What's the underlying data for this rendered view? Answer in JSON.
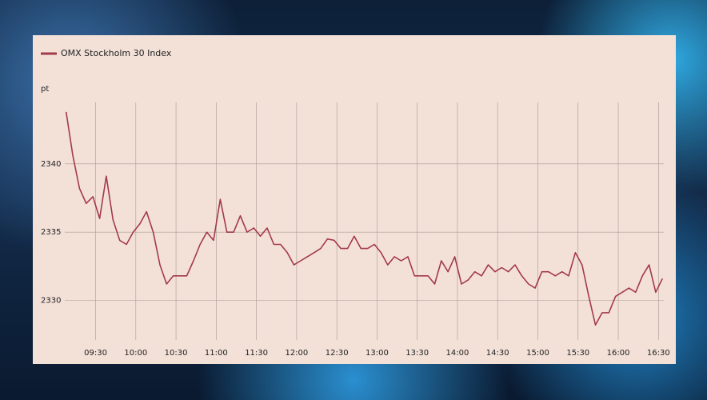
{
  "chart_data": {
    "type": "line",
    "legend": "top-left",
    "grid": true,
    "y_label": "pt",
    "x": [
      "09:08",
      "09:13",
      "09:18",
      "09:23",
      "09:28",
      "09:33",
      "09:38",
      "09:43",
      "09:48",
      "09:53",
      "09:58",
      "10:03",
      "10:08",
      "10:13",
      "10:18",
      "10:23",
      "10:28",
      "10:33",
      "10:38",
      "10:43",
      "10:48",
      "10:53",
      "10:58",
      "11:03",
      "11:08",
      "11:13",
      "11:18",
      "11:23",
      "11:28",
      "11:33",
      "11:38",
      "11:43",
      "11:48",
      "11:53",
      "11:58",
      "12:03",
      "12:08",
      "12:13",
      "12:18",
      "12:23",
      "12:28",
      "12:33",
      "12:38",
      "12:43",
      "12:48",
      "12:53",
      "12:58",
      "13:03",
      "13:08",
      "13:13",
      "13:18",
      "13:23",
      "13:28",
      "13:33",
      "13:38",
      "13:43",
      "13:48",
      "13:53",
      "13:58",
      "14:03",
      "14:08",
      "14:13",
      "14:18",
      "14:23",
      "14:28",
      "14:33",
      "14:38",
      "14:43",
      "14:48",
      "14:53",
      "14:58",
      "15:03",
      "15:08",
      "15:13",
      "15:18",
      "15:23",
      "15:28",
      "15:33",
      "15:38",
      "15:43",
      "15:48",
      "15:53",
      "15:58",
      "16:03",
      "16:08",
      "16:13",
      "16:18",
      "16:23",
      "16:28",
      "16:33"
    ],
    "series": [
      {
        "name": "OMX Stockholm 30 Index",
        "color": "#a33a48",
        "values": [
          2343.8,
          2340.6,
          2338.2,
          2337.1,
          2337.6,
          2336.0,
          2339.1,
          2335.9,
          2334.4,
          2334.1,
          2335.0,
          2335.6,
          2336.5,
          2335.0,
          2332.6,
          2331.2,
          2331.8,
          2331.8,
          2331.8,
          2332.9,
          2334.1,
          2335.0,
          2334.4,
          2337.4,
          2335.0,
          2335.0,
          2336.2,
          2335.0,
          2335.3,
          2334.7,
          2335.3,
          2334.1,
          2334.1,
          2333.5,
          2332.6,
          2332.9,
          2333.2,
          2333.5,
          2333.8,
          2334.5,
          2334.4,
          2333.8,
          2333.8,
          2334.7,
          2333.8,
          2333.8,
          2334.1,
          2333.5,
          2332.6,
          2333.2,
          2332.9,
          2333.2,
          2331.8,
          2331.8,
          2331.8,
          2331.2,
          2332.9,
          2332.1,
          2333.2,
          2331.2,
          2331.5,
          2332.1,
          2331.8,
          2332.6,
          2332.1,
          2332.4,
          2332.1,
          2332.6,
          2331.8,
          2331.2,
          2330.9,
          2332.1,
          2332.1,
          2331.8,
          2332.1,
          2331.8,
          2333.5,
          2332.6,
          2330.3,
          2328.2,
          2329.1,
          2329.1,
          2330.3,
          2330.6,
          2330.9,
          2330.6,
          2331.8,
          2332.6,
          2330.6,
          2331.6
        ]
      }
    ],
    "xlim": [
      "09:07",
      "16:34"
    ],
    "xticks": [
      "09:30",
      "10:00",
      "10:30",
      "11:00",
      "11:30",
      "12:00",
      "12:30",
      "13:00",
      "13:30",
      "14:00",
      "14:30",
      "15:00",
      "15:30",
      "16:00",
      "16:30"
    ],
    "ylim": [
      2327.1,
      2344.5
    ],
    "yticks": [
      2330,
      2335,
      2340
    ]
  }
}
